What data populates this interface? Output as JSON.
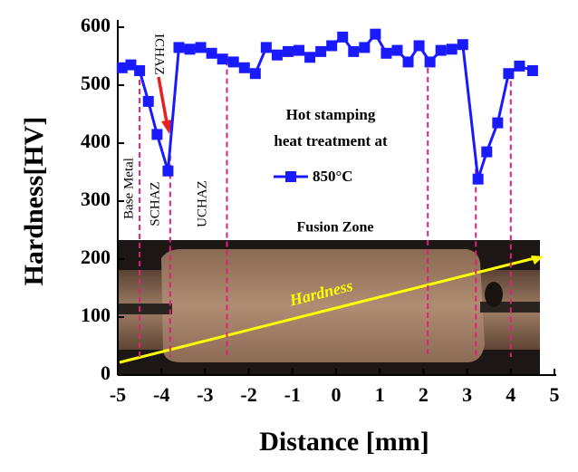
{
  "chart_data": {
    "type": "line",
    "x_label": "Distance [mm]",
    "y_label": "Hardness[HV]",
    "legend_title": [
      "Hot stamping",
      "heat treatment at"
    ],
    "series": [
      {
        "name": "850°C",
        "color": "#1a1aff",
        "x": [
          -4.9,
          -4.7,
          -4.5,
          -4.3,
          -4.1,
          -3.85,
          -3.6,
          -3.35,
          -3.1,
          -2.85,
          -2.6,
          -2.35,
          -2.1,
          -1.85,
          -1.6,
          -1.35,
          -1.1,
          -0.85,
          -0.6,
          -0.35,
          -0.1,
          0.15,
          0.4,
          0.65,
          0.9,
          1.15,
          1.4,
          1.65,
          1.9,
          2.15,
          2.4,
          2.65,
          2.9,
          3.25,
          3.45,
          3.7,
          3.95,
          4.2,
          4.5
        ],
        "values": [
          530,
          535,
          525,
          472,
          415,
          352,
          565,
          562,
          565,
          555,
          545,
          540,
          530,
          520,
          565,
          552,
          558,
          560,
          548,
          558,
          568,
          583,
          558,
          565,
          588,
          555,
          560,
          540,
          568,
          540,
          560,
          562,
          570,
          338,
          385,
          435,
          520,
          533,
          525
        ]
      }
    ],
    "reference_lines": [
      -4.5,
      -3.8,
      -2.5,
      2.1,
      3.2,
      4.0
    ],
    "annotations": {
      "base_metal": "Base Metal",
      "ichaz": "ICHAZ",
      "schaz": "SCHAZ",
      "uchaz": "UCHAZ",
      "fusion_zone": "Fusion Zone",
      "hardness": "Hardness"
    },
    "xlim": [
      -5,
      5
    ],
    "xticks": [
      -5,
      -4,
      -3,
      -2,
      -1,
      0,
      1,
      2,
      3,
      4,
      5
    ],
    "ylim": [
      0,
      600
    ],
    "yticks": [
      0,
      100,
      200,
      300,
      400,
      500,
      600
    ]
  }
}
